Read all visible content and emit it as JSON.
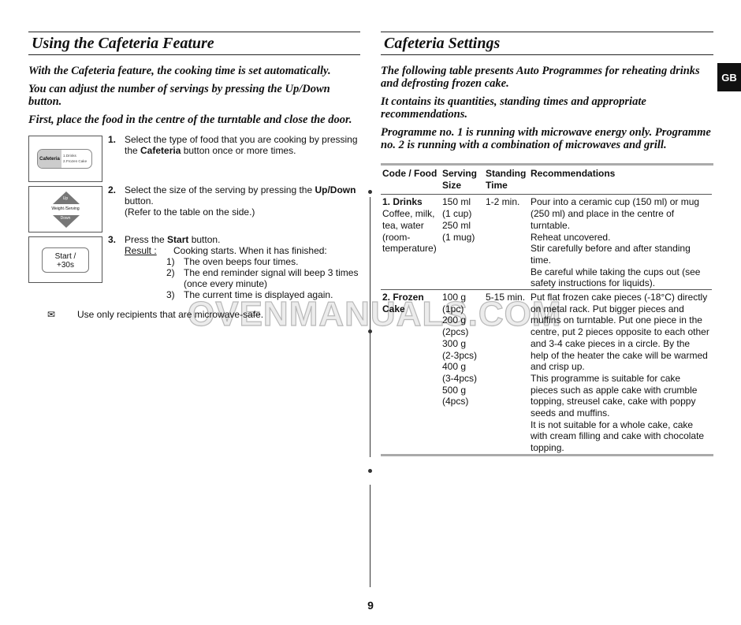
{
  "left": {
    "title": "Using the Cafeteria Feature",
    "intro": [
      "With the Cafeteria feature, the cooking time is set automatically.",
      "You can adjust the number of servings by pressing the Up/Down button.",
      "First, place the food in the centre of the turntable and close the door."
    ],
    "panel1": {
      "button": "Cafeteria",
      "opt1": "1.Drinks",
      "opt2": "2.Frozen Cake"
    },
    "panel2": {
      "up": "Up",
      "label": "Weight /Serving",
      "down": "Down"
    },
    "panel3": {
      "line1": "Start /",
      "line2": "+30s"
    },
    "steps": [
      {
        "num": "1.",
        "pre": "Select the type of food that you are cooking by pressing the ",
        "bold": "Cafeteria",
        "post": " button once or more times."
      },
      {
        "num": "2.",
        "pre": "Select the size of the serving by pressing the ",
        "bold": "Up/Down",
        "post": " button.",
        "extra": "(Refer to the table on the side.)"
      },
      {
        "num": "3.",
        "pre": "Press the ",
        "bold": "Start",
        "post": " button.",
        "result_label": "Result :",
        "result_text": "Cooking starts. When it has finished:",
        "sub": [
          {
            "n": "1)",
            "t": "The oven beeps four times."
          },
          {
            "n": "2)",
            "t": "The end reminder signal will beep 3 times (once every minute)"
          },
          {
            "n": "3)",
            "t": "The current time is displayed again."
          }
        ]
      }
    ],
    "note": "Use only recipients that are microwave-safe."
  },
  "right": {
    "title": "Cafeteria Settings",
    "intro": [
      "The following table presents Auto Programmes for reheating drinks and defrosting frozen cake.",
      "It contains its quantities, standing times and appropriate recommendations.",
      "Programme no. 1 is running with microwave energy only. Programme no. 2 is running with a combination of microwaves and grill."
    ],
    "table": {
      "headers": [
        "Code / Food",
        "Serving Size",
        "Standing Time",
        "Recommendations"
      ],
      "rows": [
        {
          "code": "1. Drinks",
          "food": "Coffee, milk, tea, water (room-temperature)",
          "serving": [
            "150 ml",
            "(1 cup)",
            "250 ml",
            "(1 mug)"
          ],
          "time": "1-2 min.",
          "rec": [
            "Pour into a ceramic cup (150 ml) or mug (250 ml) and place in the centre of turntable.",
            "Reheat uncovered.",
            "Stir carefully before and after standing time.",
            "Be careful while taking the cups out (see safety instructions for liquids)."
          ]
        },
        {
          "code": "2. Frozen Cake",
          "food": "",
          "serving": [
            "100 g",
            "(1pc)",
            "200 g",
            "(2pcs)",
            "300 g",
            "(2-3pcs)",
            "400 g",
            "(3-4pcs)",
            "500 g",
            "(4pcs)"
          ],
          "time": "5-15 min.",
          "rec": [
            "Put flat frozen cake pieces (-18°C) directly on metal rack. Put bigger pieces and muffins on turntable. Put one piece in the centre, put 2 pieces opposite to each other and 3-4 cake pieces in a circle. By the help of the heater the cake will be warmed and crisp up.",
            "This programme is suitable for cake pieces such as apple cake with crumble topping, streusel cake, cake with poppy seeds and muffins.",
            "It is not suitable for a whole cake, cake with cream filling and cake with chocolate topping."
          ]
        }
      ]
    }
  },
  "tab": "GB",
  "page_number": "9",
  "watermark": "OVENMANUALS.COM"
}
